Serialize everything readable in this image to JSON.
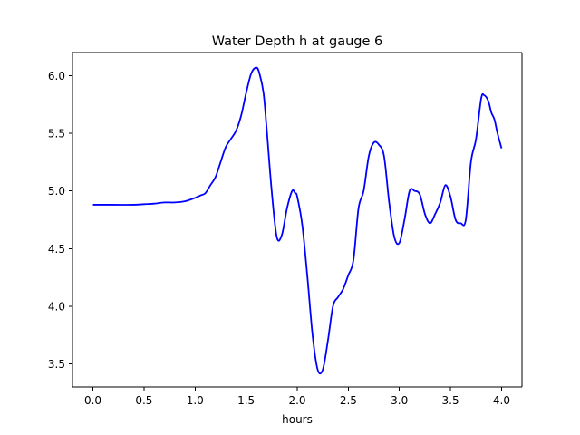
{
  "chart_data": {
    "type": "line",
    "title": "Water Depth h at gauge 6",
    "xlabel": "hours",
    "ylabel": "",
    "xlim": [
      -0.2,
      4.2
    ],
    "ylim": [
      3.3,
      6.2
    ],
    "xticks": [
      0.0,
      0.5,
      1.0,
      1.5,
      2.0,
      2.5,
      3.0,
      3.5,
      4.0
    ],
    "xtick_labels": [
      "0.0",
      "0.5",
      "1.0",
      "1.5",
      "2.0",
      "2.5",
      "3.0",
      "3.5",
      "4.0"
    ],
    "yticks": [
      3.5,
      4.0,
      4.5,
      5.0,
      5.5,
      6.0
    ],
    "ytick_labels": [
      "3.5",
      "4.0",
      "4.5",
      "5.0",
      "5.5",
      "6.0"
    ],
    "grid": false,
    "legend": "none",
    "series": [
      {
        "color": "#0000ff",
        "x": [
          0.0,
          0.2,
          0.4,
          0.5,
          0.6,
          0.7,
          0.8,
          0.9,
          1.0,
          1.05,
          1.1,
          1.15,
          1.2,
          1.25,
          1.3,
          1.35,
          1.4,
          1.45,
          1.5,
          1.55,
          1.6,
          1.63,
          1.67,
          1.7,
          1.75,
          1.8,
          1.85,
          1.9,
          1.95,
          1.98,
          2.0,
          2.05,
          2.1,
          2.15,
          2.2,
          2.25,
          2.3,
          2.35,
          2.4,
          2.45,
          2.5,
          2.55,
          2.6,
          2.65,
          2.7,
          2.75,
          2.8,
          2.85,
          2.9,
          2.95,
          3.0,
          3.05,
          3.1,
          3.15,
          3.2,
          3.25,
          3.3,
          3.35,
          3.4,
          3.45,
          3.5,
          3.55,
          3.6,
          3.65,
          3.7,
          3.75,
          3.8,
          3.83,
          3.87,
          3.9,
          3.93,
          3.96,
          4.0
        ],
        "y": [
          4.88,
          4.88,
          4.88,
          4.885,
          4.89,
          4.9,
          4.9,
          4.91,
          4.94,
          4.96,
          4.98,
          5.05,
          5.12,
          5.25,
          5.38,
          5.45,
          5.52,
          5.65,
          5.85,
          6.02,
          6.07,
          6.02,
          5.85,
          5.55,
          5.0,
          4.6,
          4.62,
          4.85,
          5.0,
          4.98,
          4.95,
          4.7,
          4.25,
          3.75,
          3.45,
          3.45,
          3.7,
          4.0,
          4.08,
          4.15,
          4.27,
          4.4,
          4.85,
          5.0,
          5.3,
          5.42,
          5.4,
          5.3,
          4.9,
          4.6,
          4.55,
          4.75,
          5.0,
          5.0,
          4.97,
          4.8,
          4.72,
          4.8,
          4.9,
          5.05,
          4.95,
          4.75,
          4.72,
          4.75,
          5.25,
          5.45,
          5.8,
          5.83,
          5.78,
          5.68,
          5.62,
          5.5,
          5.37
        ]
      }
    ]
  }
}
